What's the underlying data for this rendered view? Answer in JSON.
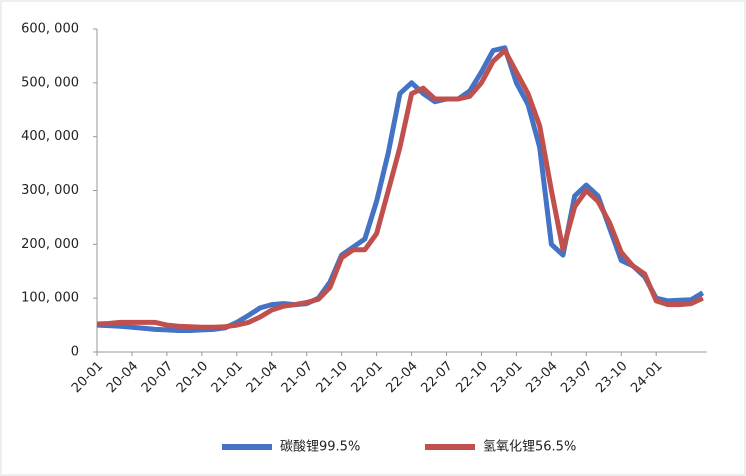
{
  "chart_data": {
    "type": "line",
    "categories": [
      "20-01",
      null,
      null,
      "20-04",
      null,
      null,
      "20-07",
      null,
      null,
      "20-10",
      null,
      null,
      "21-01",
      null,
      null,
      "21-04",
      null,
      null,
      "21-07",
      null,
      null,
      "21-10",
      null,
      null,
      "22-01",
      null,
      null,
      "22-04",
      null,
      null,
      "22-07",
      null,
      null,
      "22-10",
      null,
      null,
      "23-01",
      null,
      null,
      "23-04",
      null,
      null,
      "23-07",
      null,
      null,
      "23-10",
      null,
      null,
      "24-01",
      null,
      null,
      null,
      null
    ],
    "series": [
      {
        "name": "碳酸锂99.5%",
        "color": "#4472c4",
        "values": [
          50000,
          49000,
          48000,
          46000,
          44000,
          42000,
          41000,
          40000,
          40000,
          41000,
          42000,
          45000,
          55000,
          68000,
          82000,
          88000,
          90000,
          88000,
          90000,
          100000,
          130000,
          180000,
          195000,
          210000,
          280000,
          370000,
          480000,
          500000,
          480000,
          465000,
          470000,
          470000,
          485000,
          520000,
          560000,
          565000,
          500000,
          460000,
          380000,
          200000,
          180000,
          290000,
          310000,
          290000,
          230000,
          170000,
          160000,
          140000,
          100000,
          95000,
          96000,
          97000,
          110000
        ]
      },
      {
        "name": "氢氧化锂56.5%",
        "color": "#c0504d",
        "values": [
          52000,
          53000,
          55000,
          55000,
          55000,
          55000,
          50000,
          48000,
          47000,
          46000,
          46000,
          47000,
          50000,
          55000,
          65000,
          78000,
          85000,
          88000,
          92000,
          98000,
          120000,
          175000,
          190000,
          190000,
          220000,
          300000,
          380000,
          480000,
          490000,
          470000,
          470000,
          470000,
          475000,
          500000,
          540000,
          560000,
          520000,
          480000,
          420000,
          300000,
          190000,
          270000,
          300000,
          280000,
          240000,
          185000,
          160000,
          145000,
          95000,
          88000,
          88000,
          90000,
          100000
        ]
      }
    ],
    "ylim": [
      0,
      600000
    ],
    "yticks": [
      0,
      {
        "value": 100000,
        "label": "100, 000"
      },
      {
        "value": 200000,
        "label": "200, 000"
      },
      {
        "value": 300000,
        "label": "300, 000"
      },
      {
        "value": 400000,
        "label": "400, 000"
      },
      {
        "value": 500000,
        "label": "500, 000"
      },
      {
        "value": 600000,
        "label": "600, 000"
      }
    ],
    "legend": "bottom"
  }
}
